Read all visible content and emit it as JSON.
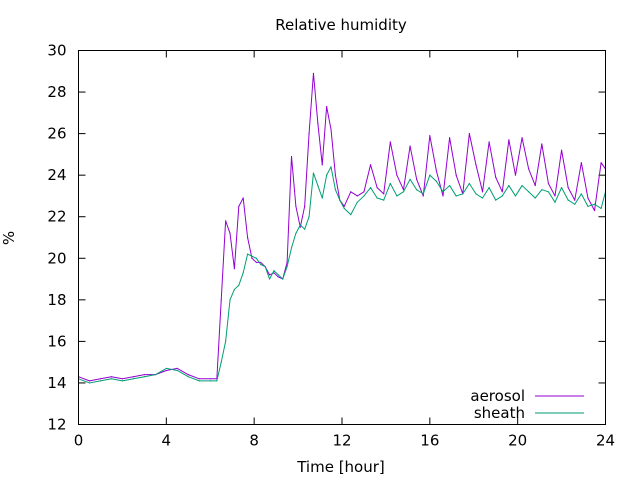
{
  "chart_data": {
    "type": "line",
    "title": "Relative humidity",
    "xlabel": "Time [hour]",
    "ylabel": "%",
    "xlim": [
      0,
      24
    ],
    "ylim": [
      12,
      30
    ],
    "xticks": [
      0,
      4,
      8,
      12,
      16,
      20,
      24
    ],
    "yticks": [
      12,
      14,
      16,
      18,
      20,
      22,
      24,
      26,
      28,
      30
    ],
    "grid": false,
    "legend_position": "bottom-right",
    "series": [
      {
        "name": "aerosol",
        "color": "#9400d3",
        "x": [
          0,
          0.5,
          1,
          1.5,
          2,
          2.5,
          3,
          3.5,
          4,
          4.5,
          5,
          5.5,
          6,
          6.3,
          6.5,
          6.7,
          6.9,
          7.1,
          7.3,
          7.5,
          7.7,
          7.9,
          8.1,
          8.3,
          8.5,
          8.7,
          8.9,
          9.1,
          9.3,
          9.5,
          9.7,
          9.9,
          10.1,
          10.3,
          10.5,
          10.7,
          10.9,
          11.1,
          11.3,
          11.5,
          11.7,
          11.9,
          12.1,
          12.4,
          12.7,
          13.0,
          13.3,
          13.6,
          13.9,
          14.2,
          14.5,
          14.8,
          15.1,
          15.4,
          15.7,
          16.0,
          16.3,
          16.6,
          16.9,
          17.2,
          17.5,
          17.8,
          18.1,
          18.4,
          18.7,
          19.0,
          19.3,
          19.6,
          19.9,
          20.2,
          20.5,
          20.8,
          21.1,
          21.4,
          21.7,
          22.0,
          22.3,
          22.6,
          22.9,
          23.2,
          23.5,
          23.8,
          24
        ],
        "values": [
          14.3,
          14.1,
          14.2,
          14.3,
          14.2,
          14.3,
          14.4,
          14.4,
          14.6,
          14.7,
          14.4,
          14.2,
          14.2,
          14.2,
          18.0,
          21.8,
          21.2,
          19.5,
          22.5,
          22.9,
          21.0,
          20.0,
          19.8,
          19.8,
          19.6,
          19.2,
          19.3,
          19.1,
          19.0,
          19.8,
          24.9,
          22.5,
          21.5,
          22.5,
          26.0,
          28.9,
          26.5,
          24.5,
          27.3,
          26.2,
          24.0,
          22.8,
          22.5,
          23.2,
          23.0,
          23.2,
          24.5,
          23.4,
          23.1,
          25.6,
          24.0,
          23.3,
          25.4,
          23.8,
          23.0,
          25.9,
          24.2,
          23.0,
          25.8,
          24.0,
          23.1,
          26.0,
          24.5,
          23.2,
          25.6,
          23.9,
          23.2,
          25.7,
          24.0,
          25.8,
          24.3,
          23.5,
          25.5,
          23.6,
          23.0,
          25.2,
          23.4,
          22.8,
          24.6,
          22.9,
          22.3,
          24.6,
          24.3
        ]
      },
      {
        "name": "sheath",
        "color": "#009e73",
        "x": [
          0,
          0.5,
          1,
          1.5,
          2,
          2.5,
          3,
          3.5,
          4,
          4.5,
          5,
          5.5,
          6,
          6.3,
          6.5,
          6.7,
          6.9,
          7.1,
          7.3,
          7.5,
          7.7,
          7.9,
          8.1,
          8.3,
          8.5,
          8.7,
          8.9,
          9.1,
          9.3,
          9.5,
          9.7,
          9.9,
          10.1,
          10.3,
          10.5,
          10.7,
          10.9,
          11.1,
          11.3,
          11.5,
          11.7,
          11.9,
          12.1,
          12.4,
          12.7,
          13.0,
          13.3,
          13.6,
          13.9,
          14.2,
          14.5,
          14.8,
          15.1,
          15.4,
          15.7,
          16.0,
          16.3,
          16.6,
          16.9,
          17.2,
          17.5,
          17.8,
          18.1,
          18.4,
          18.7,
          19.0,
          19.3,
          19.6,
          19.9,
          20.2,
          20.5,
          20.8,
          21.1,
          21.4,
          21.7,
          22.0,
          22.3,
          22.6,
          22.9,
          23.2,
          23.5,
          23.8,
          24
        ],
        "values": [
          14.2,
          14.0,
          14.1,
          14.2,
          14.1,
          14.2,
          14.3,
          14.4,
          14.7,
          14.6,
          14.3,
          14.1,
          14.1,
          14.1,
          15.0,
          16.0,
          18.0,
          18.5,
          18.7,
          19.3,
          20.2,
          20.1,
          20.0,
          19.7,
          19.6,
          19.0,
          19.4,
          19.2,
          19.0,
          19.6,
          20.5,
          21.2,
          21.6,
          21.4,
          22.0,
          24.1,
          23.5,
          22.9,
          24.0,
          24.4,
          23.3,
          22.8,
          22.4,
          22.1,
          22.7,
          23.0,
          23.4,
          22.9,
          22.8,
          23.6,
          23.0,
          23.2,
          23.8,
          23.3,
          23.1,
          24.0,
          23.7,
          23.2,
          23.5,
          23.0,
          23.1,
          23.6,
          23.1,
          22.9,
          23.4,
          22.8,
          23.0,
          23.5,
          23.0,
          23.5,
          23.2,
          22.9,
          23.3,
          23.2,
          22.7,
          23.4,
          22.8,
          22.6,
          23.1,
          22.5,
          22.6,
          22.4,
          23.2
        ]
      }
    ]
  }
}
